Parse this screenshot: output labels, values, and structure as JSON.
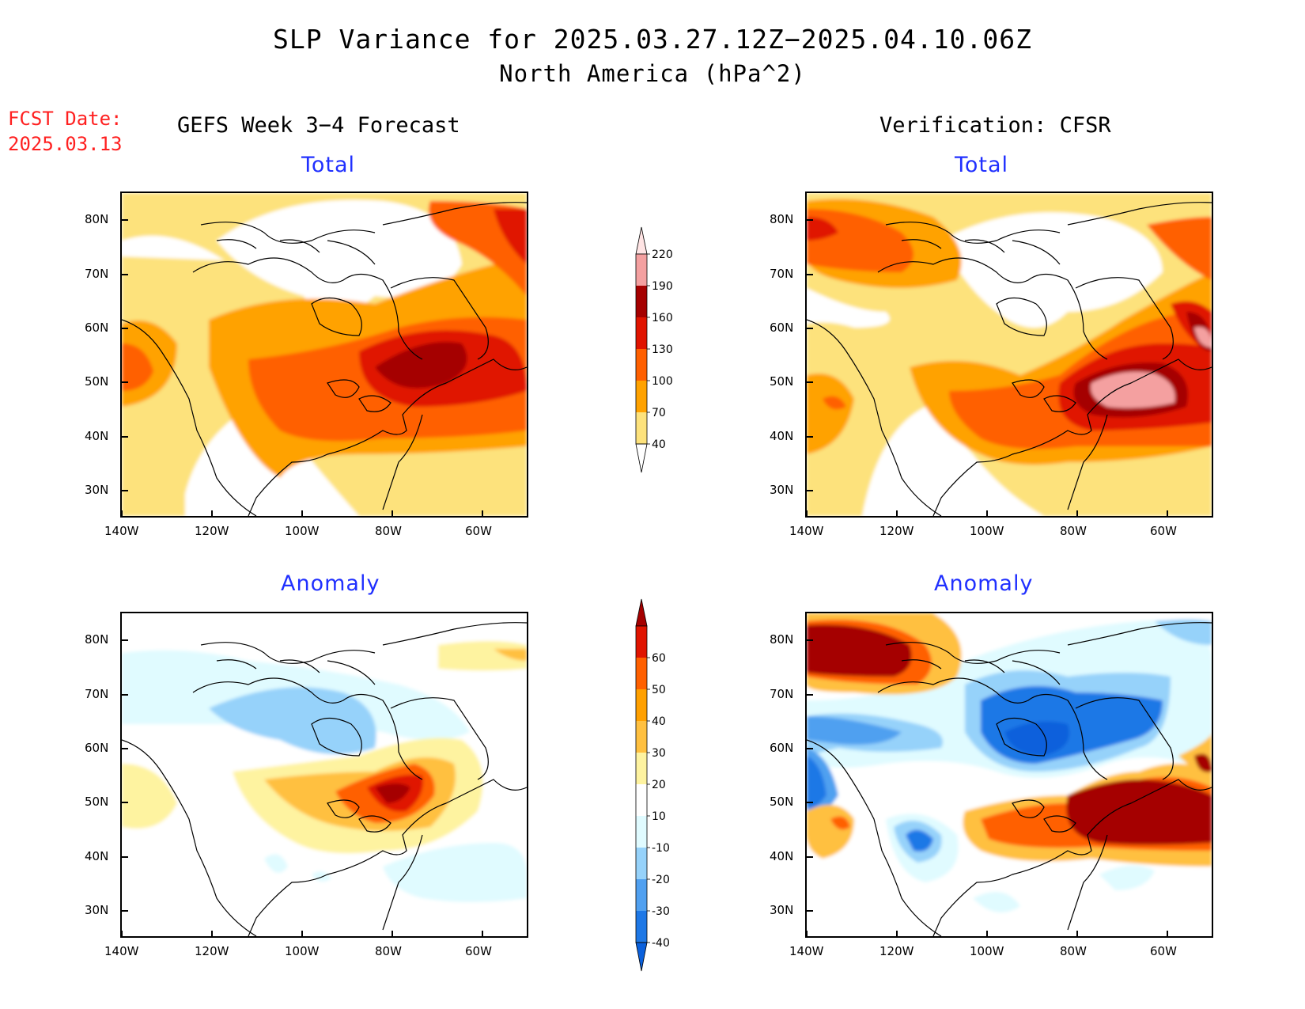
{
  "header": {
    "title": "SLP Variance for 2025.03.27.12Z−2025.04.10.06Z",
    "subtitle": "North America (hPa^2)",
    "fcst_label": "FCST Date:",
    "fcst_date": "2025.03.13",
    "left_title": "GEFS Week 3−4 Forecast",
    "right_title": "Verification: CFSR"
  },
  "panels": {
    "total_label": "Total",
    "anomaly_label": "Anomaly"
  },
  "axes": {
    "lon_labels": [
      "140W",
      "120W",
      "100W",
      "80W",
      "60W"
    ],
    "lat_labels": [
      "80N",
      "70N",
      "60N",
      "50N",
      "40N",
      "30N"
    ]
  },
  "total_colorbar": {
    "levels": [
      "40",
      "70",
      "100",
      "130",
      "160",
      "190",
      "220"
    ],
    "colors": [
      "#ffffff",
      "#fde27c",
      "#ffa200",
      "#ff6000",
      "#e01400",
      "#a50000",
      "#f4a0a0",
      "#ffe4e4"
    ]
  },
  "anomaly_colorbar": {
    "levels": [
      "-40",
      "-30",
      "-20",
      "-10",
      "10",
      "20",
      "30",
      "40",
      "50",
      "60"
    ],
    "colors": [
      "#0a60dc",
      "#1e78e6",
      "#50a0f0",
      "#96d2fa",
      "#e0fbff",
      "#ffffff",
      "#fef3a0",
      "#ffc040",
      "#ffa000",
      "#ff6000",
      "#e01400",
      "#a50000"
    ]
  }
}
